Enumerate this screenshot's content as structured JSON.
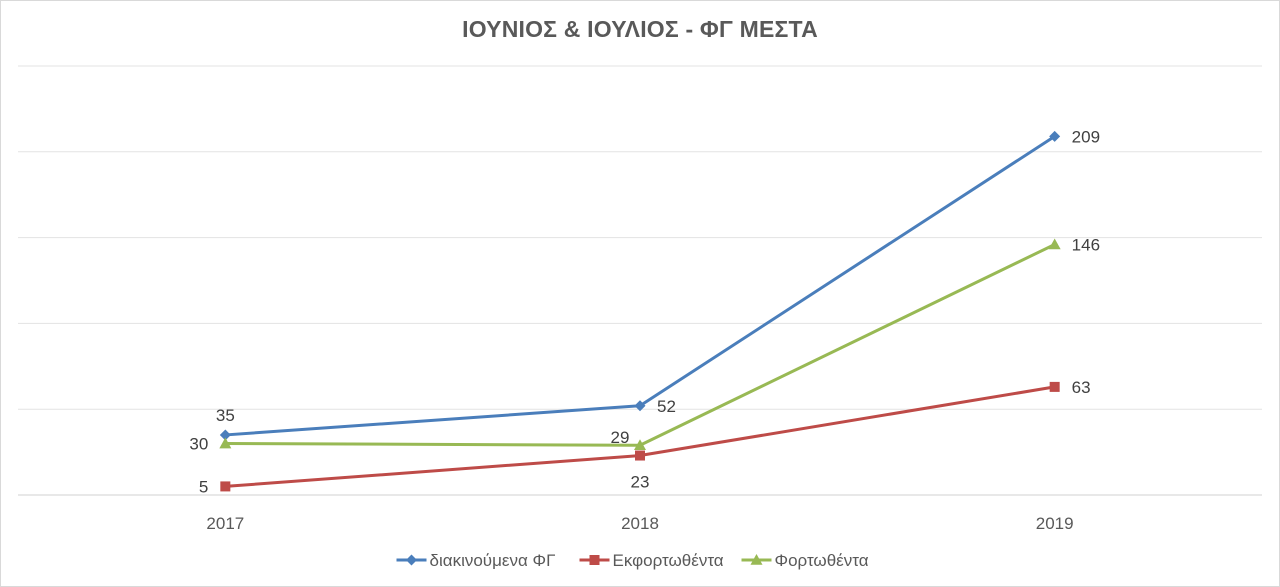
{
  "chart_data": {
    "type": "line",
    "title": "ΙΟΥΝΙΟΣ & ΙΟΥΛΙΟΣ - ΦΓ ΜΕΣΤΑ",
    "categories": [
      "2017",
      "2018",
      "2019"
    ],
    "xlabel": "",
    "ylabel": "",
    "ylim": [
      0,
      250
    ],
    "y_gridlines": [
      0,
      50,
      100,
      150,
      200,
      250
    ],
    "y_tick_labels_shown": false,
    "grid": true,
    "legend_position": "bottom",
    "series": [
      {
        "name": "διακινούμενα ΦΓ",
        "values": [
          35,
          52,
          209
        ],
        "color": "#4a7ebb",
        "marker": "diamond",
        "label_placement": [
          "above",
          "right",
          "right"
        ]
      },
      {
        "name": "Εκφορτωθέντα",
        "values": [
          5,
          23,
          63
        ],
        "color": "#be4b48",
        "marker": "square",
        "label_placement": [
          "left",
          "below",
          "right"
        ]
      },
      {
        "name": "Φορτωθέντα",
        "values": [
          30,
          29,
          146
        ],
        "color": "#98b954",
        "marker": "triangle",
        "label_placement": [
          "left",
          "above-left",
          "right"
        ]
      }
    ]
  }
}
